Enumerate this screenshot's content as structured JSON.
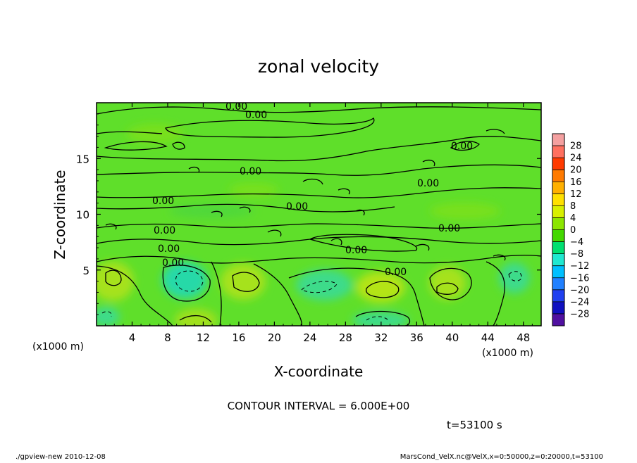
{
  "chart_data": {
    "type": "heatmap",
    "title": "zonal velocity",
    "xlabel": "X-coordinate",
    "ylabel": "Z-coordinate",
    "x_unit": "(x1000 m)",
    "z_unit": "(x1000 m)",
    "xlim": [
      0,
      50
    ],
    "ylim": [
      0,
      20
    ],
    "x_ticks": [
      "4",
      "8",
      "12",
      "16",
      "20",
      "24",
      "28",
      "32",
      "36",
      "40",
      "44",
      "48"
    ],
    "y_ticks": [
      "5",
      "10",
      "15"
    ],
    "contour_interval_label": "CONTOUR INTERVAL = 6.000E+00",
    "contour_labels": [
      "0.00",
      "0.00",
      "0.00",
      "0.00",
      "0.00",
      "0.00",
      "0.00",
      "0.00",
      "0.00",
      "0.00",
      "0.00",
      "0.00",
      "0.00"
    ],
    "colorbar": {
      "levels": [
        "28",
        "24",
        "20",
        "16",
        "12",
        "8",
        "4",
        "0",
        "−4",
        "−8",
        "−12",
        "−16",
        "−20",
        "−24",
        "−28"
      ],
      "colors": [
        "#f4a0a0",
        "#ff7060",
        "#ff3a00",
        "#ff7a00",
        "#ffb000",
        "#ffe000",
        "#d8f000",
        "#8ce600",
        "#44d800",
        "#00e070",
        "#20e8d0",
        "#00c0ff",
        "#2080ff",
        "#2040f0",
        "#1010c0",
        "#5010a0"
      ]
    },
    "time_label": "t=53100 s",
    "footer_left": "./gpview-new  2010-12-08",
    "footer_right": "MarsCond_VelX.nc@VelX,x=0:50000,z=0:20000,t=53100",
    "colors": {
      "background": "#5fdf2a",
      "warm_patch": "#a8e21a",
      "cool_patch": "#27d9a8"
    }
  }
}
